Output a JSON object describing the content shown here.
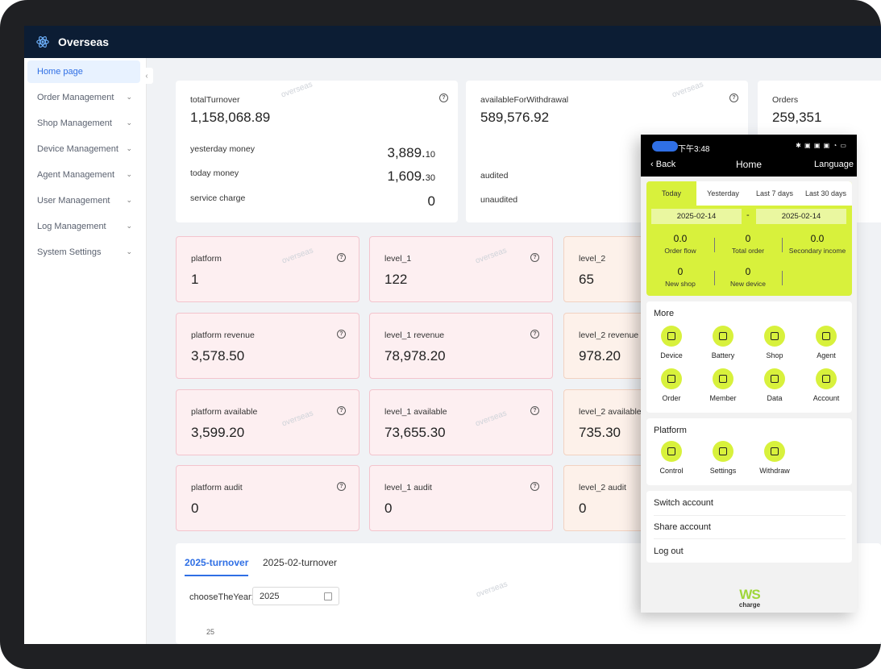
{
  "app": {
    "title": "Overseas",
    "watermark": "overseas"
  },
  "sidebar": {
    "items": [
      {
        "label": "Home page",
        "active": true
      },
      {
        "label": "Order Management"
      },
      {
        "label": "Shop Management"
      },
      {
        "label": "Device Management"
      },
      {
        "label": "Agent Management"
      },
      {
        "label": "User Management"
      },
      {
        "label": "Log Management"
      },
      {
        "label": "System Settings"
      }
    ]
  },
  "summary": {
    "turnover": {
      "label": "totalTurnover",
      "value": "1,158,068.89",
      "yesterday_label": "yesterday money",
      "yesterday_int": "3,889.",
      "yesterday_dec": "10",
      "today_label": "today money",
      "today_int": "1,609.",
      "today_dec": "30",
      "service_label": "service charge",
      "service_value": "0"
    },
    "withdrawal": {
      "label": "availableForWithdrawal",
      "value": "589,576.92",
      "audited_label": "audited",
      "unaudited_label": "unaudited"
    },
    "orders": {
      "label": "Orders",
      "value": "259,351"
    }
  },
  "metrics": [
    [
      {
        "label": "platform",
        "value": "1"
      },
      {
        "label": "level_1",
        "value": "122"
      },
      {
        "label": "level_2",
        "value": "65"
      }
    ],
    [
      {
        "label": "platform revenue",
        "value": "3,578.50"
      },
      {
        "label": "level_1 revenue",
        "value": "78,978.20"
      },
      {
        "label": "level_2 revenue",
        "value": "978.20"
      }
    ],
    [
      {
        "label": "platform available",
        "value": "3,599.20"
      },
      {
        "label": "level_1 available",
        "value": "73,655.30"
      },
      {
        "label": "level_2 available",
        "value": "735.30"
      }
    ],
    [
      {
        "label": "platform audit",
        "value": "0"
      },
      {
        "label": "level_1 audit",
        "value": "0"
      },
      {
        "label": "level_2 audit",
        "value": "0"
      }
    ]
  ],
  "turnover_panel": {
    "tabs": [
      "2025-turnover",
      "2025-02-turnover"
    ],
    "year_label": "chooseTheYear:",
    "year_value": "2025",
    "y_tick": "25"
  },
  "phone": {
    "status_time": "下午3:48",
    "status_icons": "✱ ▣ ▣ ▣ ◔ ▭",
    "nav": {
      "back": "Back",
      "title": "Home",
      "language": "Language"
    },
    "period_tabs": [
      "Today",
      "Yesterday",
      "Last 7 days",
      "Last 30 days"
    ],
    "date_from": "2025-02-14",
    "date_sep": "-",
    "date_to": "2025-02-14",
    "stats": [
      {
        "value": "0.0",
        "label": "Order flow"
      },
      {
        "value": "0",
        "label": "Total order"
      },
      {
        "value": "0.0",
        "label": "Secondary income"
      },
      {
        "value": "0",
        "label": "New shop"
      },
      {
        "value": "0",
        "label": "New device"
      }
    ],
    "more": {
      "title": "More",
      "items": [
        {
          "label": "Device",
          "icon": "device-icon"
        },
        {
          "label": "Battery",
          "icon": "battery-icon"
        },
        {
          "label": "Shop",
          "icon": "shop-icon"
        },
        {
          "label": "Agent",
          "icon": "agent-icon"
        },
        {
          "label": "Order",
          "icon": "order-icon"
        },
        {
          "label": "Member",
          "icon": "member-icon"
        },
        {
          "label": "Data",
          "icon": "data-icon"
        },
        {
          "label": "Account",
          "icon": "account-icon"
        }
      ]
    },
    "platform": {
      "title": "Platform",
      "items": [
        {
          "label": "Control",
          "icon": "scan-icon"
        },
        {
          "label": "Settings",
          "icon": "settings-icon"
        },
        {
          "label": "Withdraw",
          "icon": "wallet-icon"
        }
      ]
    },
    "account_links": [
      "Switch account",
      "Share account",
      "Log out"
    ],
    "brand": {
      "mark": "WS",
      "text": "charge"
    }
  },
  "colors": {
    "topbar": "#0c1d34",
    "accent": "#2f6fe5",
    "lime": "#d8f13c",
    "pink_card": "#fdeff1"
  }
}
